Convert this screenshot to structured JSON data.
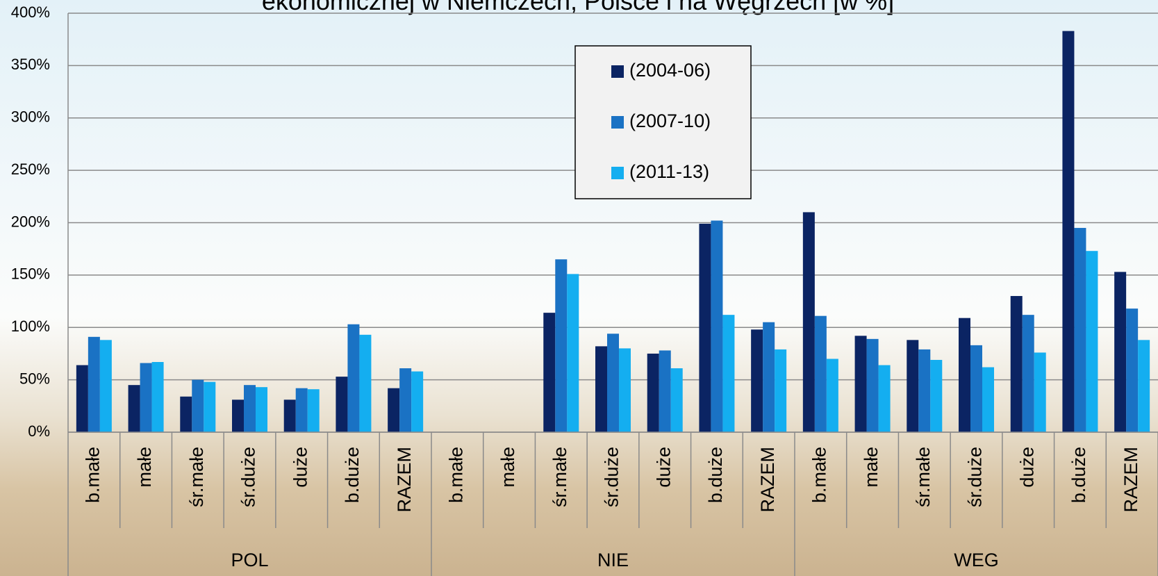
{
  "chart_data": {
    "type": "bar",
    "title": "ekonomicznej w Niemczech, Polsce i na Węgrzech [w %]",
    "groups": [
      "POL",
      "NIE",
      "WEG"
    ],
    "categories": [
      "b.małe",
      "małe",
      "śr.małe",
      "śr.duże",
      "duże",
      "b.duże",
      "RAZEM",
      "b.małe",
      "małe",
      "śr.małe",
      "śr.duże",
      "duże",
      "b.duże",
      "RAZEM",
      "b.małe",
      "małe",
      "śr.małe",
      "śr.duże",
      "duże",
      "b.duże",
      "RAZEM"
    ],
    "series": [
      {
        "name": "(2004-06)",
        "color": "#0b2463",
        "values": [
          64,
          45,
          34,
          31,
          31,
          53,
          42,
          null,
          null,
          114,
          82,
          75,
          199,
          98,
          210,
          92,
          88,
          109,
          130,
          383,
          153
        ]
      },
      {
        "name": "(2007-10)",
        "color": "#1a72c4",
        "values": [
          91,
          66,
          50,
          45,
          42,
          103,
          61,
          null,
          null,
          165,
          94,
          78,
          202,
          105,
          111,
          89,
          79,
          83,
          112,
          195,
          118
        ]
      },
      {
        "name": "(2011-13)",
        "color": "#14aef0",
        "values": [
          88,
          67,
          48,
          43,
          41,
          93,
          58,
          null,
          null,
          151,
          80,
          61,
          112,
          79,
          70,
          64,
          69,
          62,
          76,
          173,
          88
        ]
      }
    ],
    "ylim": [
      0,
      400
    ],
    "yticks": [
      {
        "value": 0,
        "label": "0%"
      },
      {
        "value": 50,
        "label": "50%"
      },
      {
        "value": 100,
        "label": "100%"
      },
      {
        "value": 150,
        "label": "150%"
      },
      {
        "value": 200,
        "label": "200%"
      },
      {
        "value": 250,
        "label": "250%"
      },
      {
        "value": 300,
        "label": "300%"
      },
      {
        "value": 350,
        "label": "350%"
      },
      {
        "value": 400,
        "label": "400%"
      }
    ],
    "grid": true,
    "legend": "top"
  }
}
